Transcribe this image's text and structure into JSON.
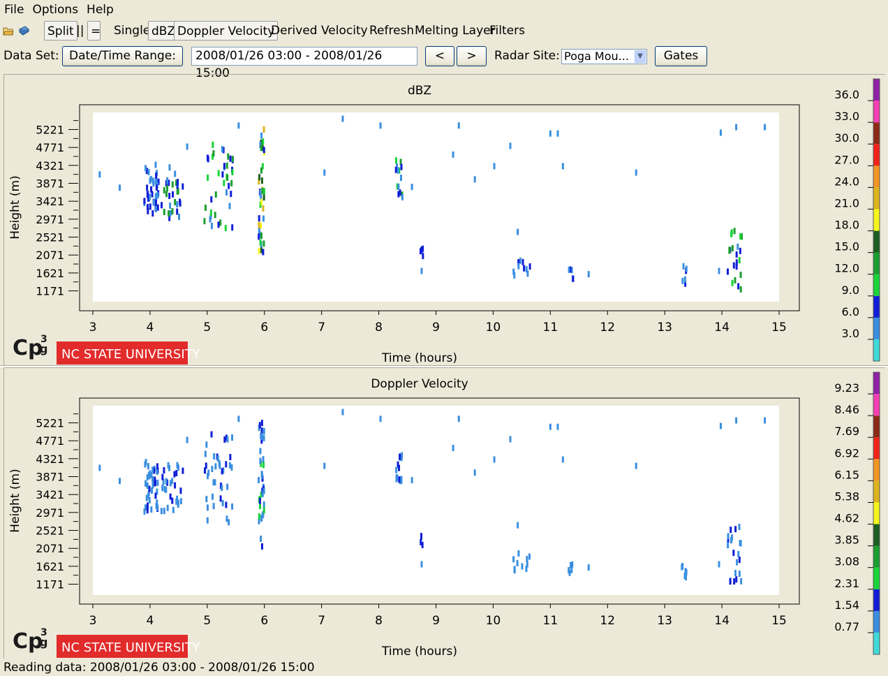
{
  "menu": [
    "File",
    "Options",
    "Help"
  ],
  "toolbar": {
    "split_label": "Split",
    "parallel_label": "||",
    "equal_label": "=",
    "single_label": "Single",
    "dbz_label": "dBZ",
    "doppler_label": "Doppler Velocity",
    "derived_label": "Derived Velocity",
    "refresh_label": "Refresh",
    "melting_label": "Melting Layer",
    "filters_label": "Filters"
  },
  "dataset": {
    "label": "Data Set:",
    "range_button": "Date/Time Range:",
    "range_value": "2008/01/26 03:00 - 2008/01/26 15:00",
    "prev": "<",
    "next": ">",
    "radar_label": "Radar Site:",
    "radar_value": "Poga Mou...",
    "gates_button": "Gates"
  },
  "logo": {
    "cp_text": "Cp",
    "cp_super": "3",
    "cp_sub": "g",
    "university": "NC STATE UNIVERSITY"
  },
  "status": "Reading data: 2008/01/26 03:00 - 2008/01/26 15:00",
  "colorscale": [
    "#3fd9d9",
    "#3a8fe0",
    "#0f1ed6",
    "#19d437",
    "#1b9e2e",
    "#1a5f20",
    "#f5f51e",
    "#dcb41e",
    "#f09622",
    "#f2221a",
    "#8c2a16",
    "#f53fb4",
    "#8f22a8"
  ],
  "chart_data": [
    {
      "type": "scatter",
      "title": "dBZ",
      "xlabel": "Time (hours)",
      "ylabel": "Height (m)",
      "xlim": [
        3,
        15
      ],
      "ylim": [
        900,
        5650
      ],
      "xticks": [
        3,
        4,
        5,
        6,
        7,
        8,
        9,
        10,
        11,
        12,
        13,
        14,
        15
      ],
      "yticks": [
        1171,
        1621,
        2071,
        2521,
        2971,
        3421,
        3871,
        4321,
        4771,
        5221
      ],
      "colorbar_labels": [
        "3.0",
        "6.0",
        "9.0",
        "12.0",
        "15.0",
        "18.0",
        "21.0",
        "24.0",
        "27.0",
        "30.0",
        "33.0",
        "36.0"
      ],
      "clusters": [
        {
          "t0": 3.9,
          "t1": 4.15,
          "h0": 3000,
          "h1": 4350,
          "n": 40,
          "c": [
            1,
            2
          ]
        },
        {
          "t0": 4.2,
          "t1": 4.6,
          "h0": 3000,
          "h1": 4300,
          "n": 30,
          "c": [
            1,
            2,
            4
          ]
        },
        {
          "t0": 4.95,
          "t1": 5.45,
          "h0": 2700,
          "h1": 4950,
          "n": 40,
          "c": [
            1,
            2,
            3,
            4
          ]
        },
        {
          "t0": 5.9,
          "t1": 6.0,
          "h0": 2100,
          "h1": 5350,
          "n": 40,
          "c": [
            1,
            2,
            3,
            4,
            5,
            6,
            7
          ]
        },
        {
          "t0": 8.3,
          "t1": 8.42,
          "h0": 3350,
          "h1": 4500,
          "n": 14,
          "c": [
            1,
            2,
            3,
            4
          ]
        },
        {
          "t0": 8.73,
          "t1": 8.78,
          "h0": 2050,
          "h1": 2400,
          "n": 4,
          "c": [
            2
          ]
        },
        {
          "t0": 10.35,
          "t1": 10.65,
          "h0": 1500,
          "h1": 2000,
          "n": 10,
          "c": [
            1,
            2
          ]
        },
        {
          "t0": 11.3,
          "t1": 11.42,
          "h0": 1450,
          "h1": 1750,
          "n": 5,
          "c": [
            1,
            2
          ]
        },
        {
          "t0": 13.3,
          "t1": 13.38,
          "h0": 1350,
          "h1": 1850,
          "n": 6,
          "c": [
            1,
            2
          ]
        },
        {
          "t0": 14.1,
          "t1": 14.35,
          "h0": 1200,
          "h1": 2700,
          "n": 22,
          "c": [
            1,
            2,
            3,
            4
          ]
        }
      ],
      "singles": [
        [
          3.12,
          4100
        ],
        [
          3.47,
          3770
        ],
        [
          4.65,
          4800
        ],
        [
          5.55,
          5330
        ],
        [
          7.05,
          4150
        ],
        [
          7.37,
          5500
        ],
        [
          8.03,
          5330
        ],
        [
          8.58,
          3790
        ],
        [
          8.75,
          1680
        ],
        [
          9.3,
          4600
        ],
        [
          9.4,
          5330
        ],
        [
          9.68,
          3980
        ],
        [
          10.02,
          4310
        ],
        [
          10.3,
          4820
        ],
        [
          10.43,
          2660
        ],
        [
          11.0,
          5130
        ],
        [
          11.13,
          5130
        ],
        [
          11.22,
          4310
        ],
        [
          11.67,
          1600
        ],
        [
          12.5,
          4150
        ],
        [
          13.95,
          1680
        ],
        [
          13.98,
          5150
        ],
        [
          14.25,
          5290
        ],
        [
          14.75,
          5290
        ]
      ],
      "singles_c": 1
    },
    {
      "type": "scatter",
      "title": "Doppler Velocity",
      "xlabel": "Time (hours)",
      "ylabel": "Height (m)",
      "xlim": [
        3,
        15
      ],
      "ylim": [
        900,
        5650
      ],
      "xticks": [
        3,
        4,
        5,
        6,
        7,
        8,
        9,
        10,
        11,
        12,
        13,
        14,
        15
      ],
      "yticks": [
        1171,
        1621,
        2071,
        2521,
        2971,
        3421,
        3871,
        4321,
        4771,
        5221
      ],
      "colorbar_labels": [
        "0.77",
        "1.54",
        "2.31",
        "3.08",
        "3.85",
        "4.62",
        "5.38",
        "6.15",
        "6.92",
        "7.69",
        "8.46",
        "9.23"
      ],
      "clusters": [
        {
          "t0": 3.9,
          "t1": 4.15,
          "h0": 3000,
          "h1": 4350,
          "n": 40,
          "c": [
            1,
            1,
            2
          ]
        },
        {
          "t0": 4.2,
          "t1": 4.6,
          "h0": 3000,
          "h1": 4300,
          "n": 30,
          "c": [
            1,
            1,
            2
          ]
        },
        {
          "t0": 4.95,
          "t1": 5.45,
          "h0": 2700,
          "h1": 4950,
          "n": 40,
          "c": [
            1,
            1,
            2
          ]
        },
        {
          "t0": 5.9,
          "t1": 6.0,
          "h0": 2100,
          "h1": 5350,
          "n": 40,
          "c": [
            1,
            1,
            2,
            3
          ]
        },
        {
          "t0": 8.3,
          "t1": 8.42,
          "h0": 3350,
          "h1": 4500,
          "n": 14,
          "c": [
            1,
            1,
            2
          ]
        },
        {
          "t0": 8.73,
          "t1": 8.78,
          "h0": 2050,
          "h1": 2400,
          "n": 4,
          "c": [
            2,
            3
          ]
        },
        {
          "t0": 10.35,
          "t1": 10.65,
          "h0": 1500,
          "h1": 2000,
          "n": 10,
          "c": [
            1,
            1
          ]
        },
        {
          "t0": 11.3,
          "t1": 11.42,
          "h0": 1450,
          "h1": 1750,
          "n": 5,
          "c": [
            1
          ]
        },
        {
          "t0": 13.3,
          "t1": 13.38,
          "h0": 1350,
          "h1": 1850,
          "n": 6,
          "c": [
            1
          ]
        },
        {
          "t0": 14.1,
          "t1": 14.35,
          "h0": 1200,
          "h1": 2700,
          "n": 22,
          "c": [
            1,
            1,
            2
          ]
        }
      ],
      "singles": [
        [
          3.12,
          4100
        ],
        [
          3.47,
          3770
        ],
        [
          4.65,
          4800
        ],
        [
          5.55,
          5330
        ],
        [
          7.05,
          4150
        ],
        [
          7.37,
          5500
        ],
        [
          8.03,
          5330
        ],
        [
          8.58,
          3790
        ],
        [
          8.75,
          1680
        ],
        [
          9.3,
          4600
        ],
        [
          9.4,
          5330
        ],
        [
          9.68,
          3980
        ],
        [
          10.02,
          4310
        ],
        [
          10.3,
          4820
        ],
        [
          10.43,
          2660
        ],
        [
          11.0,
          5130
        ],
        [
          11.13,
          5130
        ],
        [
          11.22,
          4310
        ],
        [
          11.67,
          1600
        ],
        [
          12.5,
          4150
        ],
        [
          13.95,
          1680
        ],
        [
          13.98,
          5150
        ],
        [
          14.25,
          5290
        ],
        [
          14.75,
          5290
        ]
      ],
      "singles_c": 1
    }
  ]
}
